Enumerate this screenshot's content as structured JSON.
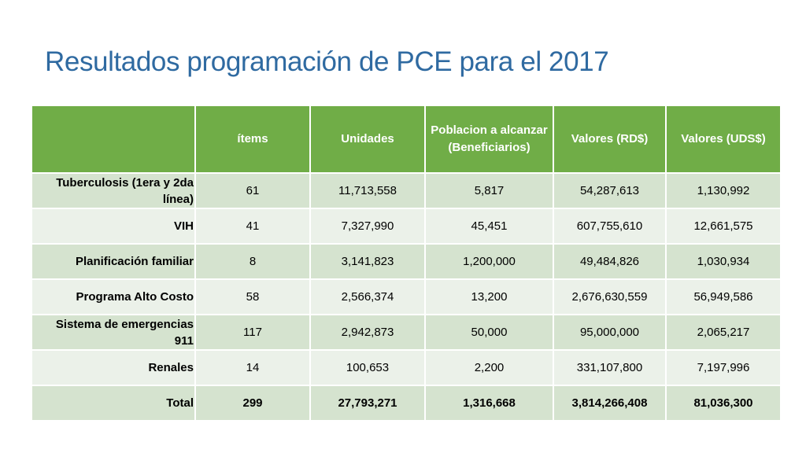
{
  "slide": {
    "title": "Resultados programación de PCE para el 2017"
  },
  "table": {
    "headers": [
      "",
      "ítems",
      "Unidades",
      "Poblacion a alcanzar (Beneficiarios)",
      "Valores (RD$)",
      "Valores (UDS$)"
    ],
    "rows": [
      [
        "Tuberculosis (1era y 2da línea)",
        "61",
        "11,713,558",
        "5,817",
        "54,287,613",
        "1,130,992"
      ],
      [
        "VIH",
        "41",
        "7,327,990",
        "45,451",
        "607,755,610",
        "12,661,575"
      ],
      [
        "Planificación familiar",
        "8",
        "3,141,823",
        "1,200,000",
        "49,484,826",
        "1,030,934"
      ],
      [
        "Programa Alto Costo",
        "58",
        "2,566,374",
        "13,200",
        "2,676,630,559",
        "56,949,586"
      ],
      [
        "Sistema de emergencias 911",
        "117",
        "2,942,873",
        "50,000",
        "95,000,000",
        "2,065,217"
      ],
      [
        "Renales",
        "14",
        "100,653",
        "2,200",
        "331,107,800",
        "7,197,996"
      ],
      [
        "Total",
        "299",
        "27,793,271",
        "1,316,668",
        "3,814,266,408",
        "81,036,300"
      ]
    ]
  },
  "colors": {
    "title": "#2f6aa1",
    "header_bg": "#70ad47",
    "row_dark": "#d5e3cf",
    "row_light": "#ebf1e9"
  }
}
